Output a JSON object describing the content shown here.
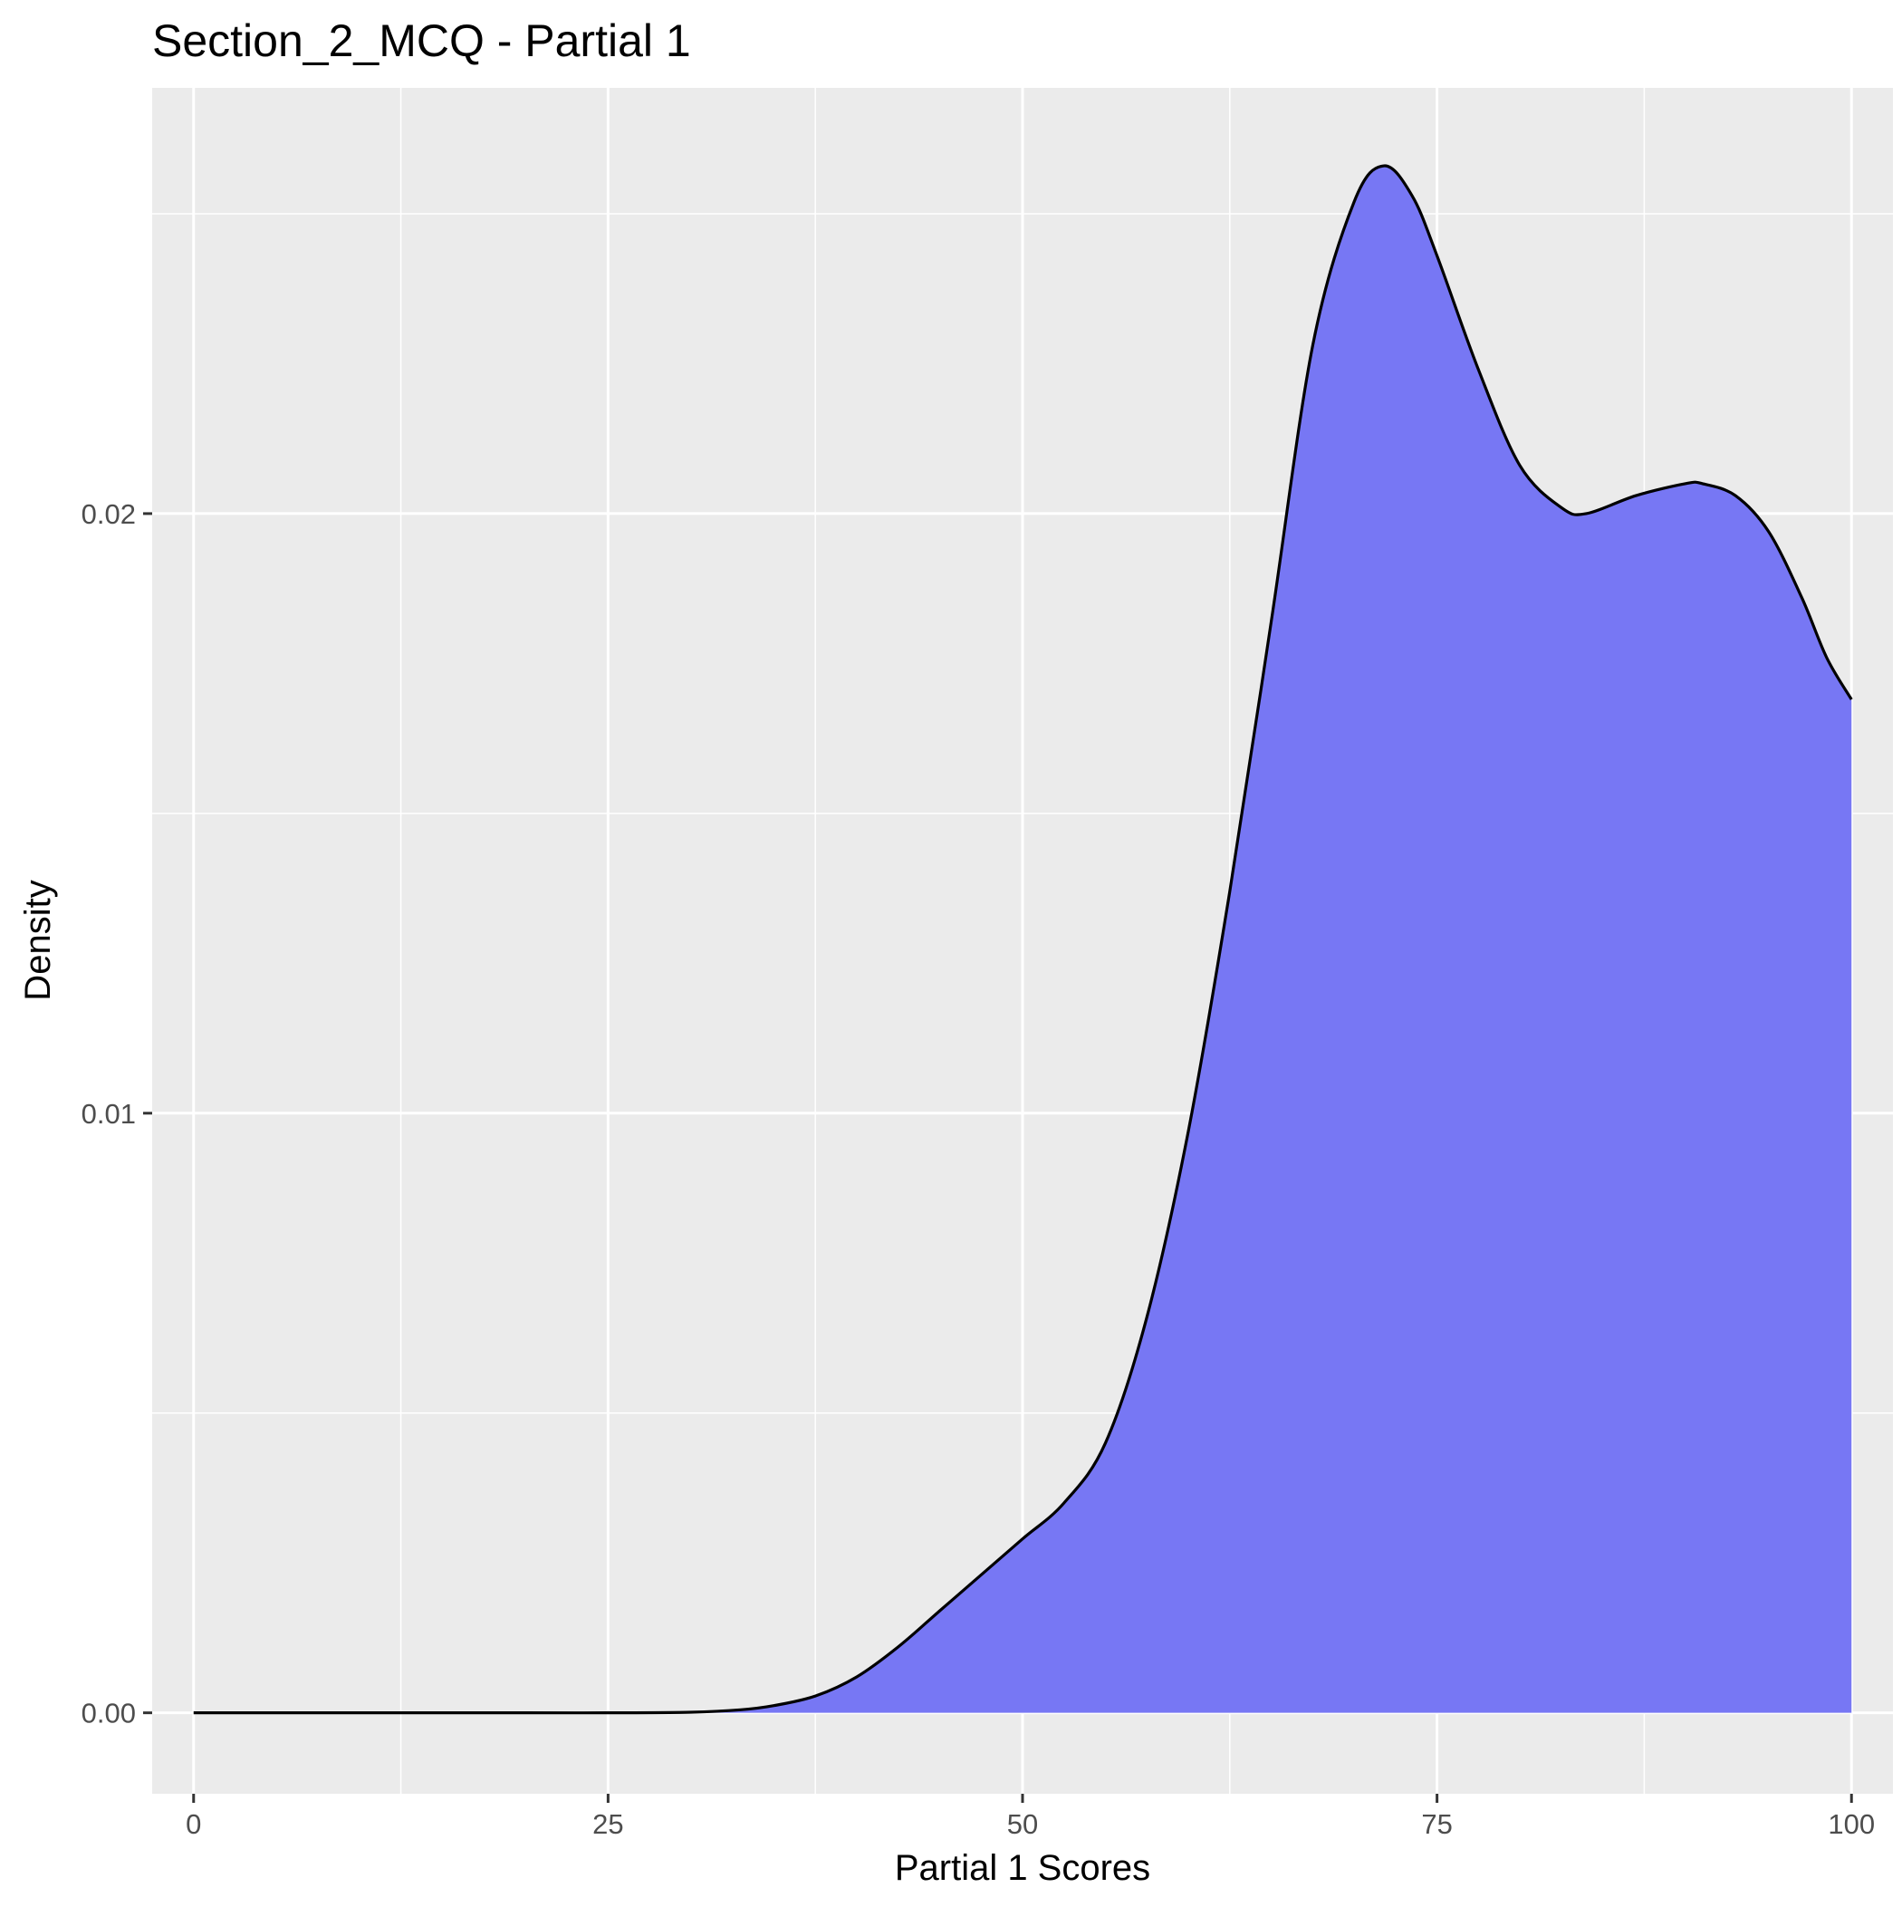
{
  "chart_data": {
    "type": "area",
    "title": "Section_2_MCQ - Partial 1",
    "xlabel": "Partial 1 Scores",
    "ylabel": "Density",
    "xlim": [
      -2.5,
      102.5
    ],
    "ylim": [
      -0.00135,
      0.0271
    ],
    "x_ticks": [
      0,
      25,
      50,
      75,
      100
    ],
    "x_tick_labels": [
      "0",
      "25",
      "50",
      "75",
      "100"
    ],
    "y_ticks": [
      0,
      0.01,
      0.02
    ],
    "y_tick_labels": [
      "0.00",
      "0.01",
      "0.02"
    ],
    "grid": true,
    "legend": "none",
    "colors": {
      "panel_background": "#ebebeb",
      "grid": "#ffffff",
      "fill": "#7777f4",
      "line": "#000000",
      "tick": "#333333"
    },
    "series": [
      {
        "x": [
          0,
          10,
          20,
          25,
          30,
          33,
          35,
          37.5,
          40,
          42.5,
          45,
          47.5,
          50,
          52.5,
          55,
          57.5,
          60,
          62.5,
          65,
          67.5,
          70,
          71.8,
          73.5,
          75,
          77.5,
          80,
          82.5,
          84,
          87,
          90,
          91,
          93,
          95,
          97,
          98.5,
          100
        ],
        "y": [
          0,
          0,
          0,
          0,
          1e-05,
          5e-05,
          0.00012,
          0.00028,
          0.0006,
          0.0011,
          0.0017,
          0.0023,
          0.0029,
          0.0035,
          0.0045,
          0.0066,
          0.0097,
          0.0137,
          0.0182,
          0.0228,
          0.0252,
          0.0258,
          0.0253,
          0.0243,
          0.0224,
          0.0208,
          0.0201,
          0.02,
          0.0203,
          0.0205,
          0.0205,
          0.0203,
          0.0197,
          0.0186,
          0.0176,
          0.0169
        ]
      }
    ]
  }
}
